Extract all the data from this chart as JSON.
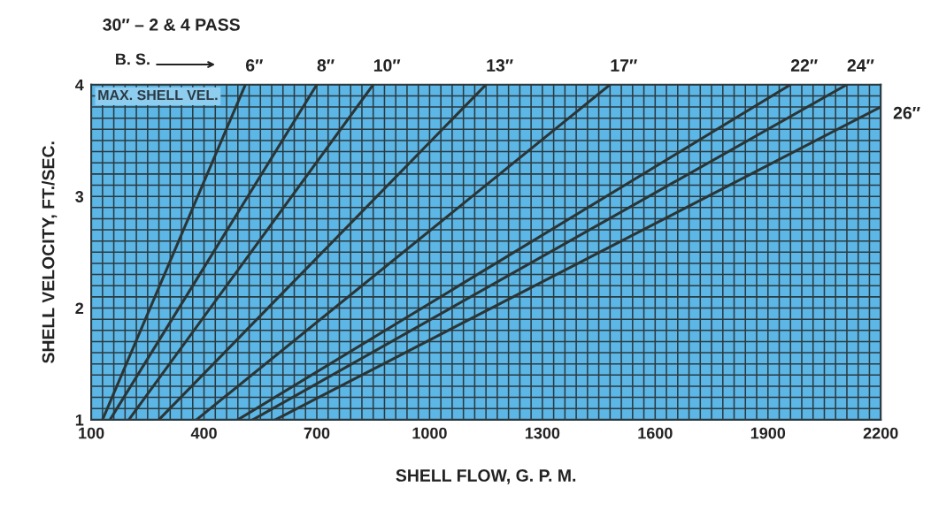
{
  "chart_data": {
    "type": "line",
    "title": "30″ – 2 & 4 PASS",
    "xlabel": "SHELL FLOW, G. P. M.",
    "ylabel": "SHELL VELOCITY, FT./SEC.",
    "annotations": [
      "B. S.",
      "MAX. SHELL VEL."
    ],
    "xlim": [
      100,
      2200
    ],
    "ylim": [
      1,
      4
    ],
    "xticks": [
      100,
      {
        "value": 130,
        "label": null
      },
      {
        "value": 160,
        "label": null
      },
      {
        "value": 190,
        "label": null
      },
      {
        "value": 220,
        "label": null
      },
      {
        "value": 250,
        "label": null
      },
      {
        "value": 280,
        "label": null
      },
      {
        "value": 310,
        "label": null
      },
      {
        "value": 340,
        "label": null
      },
      {
        "value": 370,
        "label": null
      },
      400,
      {
        "value": 430,
        "label": null
      },
      {
        "value": 460,
        "label": null
      },
      {
        "value": 490,
        "label": null
      },
      {
        "value": 520,
        "label": null
      },
      {
        "value": 550,
        "label": null
      },
      {
        "value": 580,
        "label": null
      },
      {
        "value": 610,
        "label": null
      },
      {
        "value": 640,
        "label": null
      },
      {
        "value": 670,
        "label": null
      },
      700,
      {
        "value": 730,
        "label": null
      },
      {
        "value": 760,
        "label": null
      },
      {
        "value": 790,
        "label": null
      },
      {
        "value": 820,
        "label": null
      },
      {
        "value": 850,
        "label": null
      },
      {
        "value": 880,
        "label": null
      },
      {
        "value": 910,
        "label": null
      },
      {
        "value": 940,
        "label": null
      },
      {
        "value": 970,
        "label": null
      },
      1000,
      {
        "value": 1030,
        "label": null
      },
      {
        "value": 1060,
        "label": null
      },
      {
        "value": 1090,
        "label": null
      },
      {
        "value": 1120,
        "label": null
      },
      {
        "value": 1150,
        "label": null
      },
      {
        "value": 1180,
        "label": null
      },
      {
        "value": 1210,
        "label": null
      },
      {
        "value": 1240,
        "label": null
      },
      {
        "value": 1270,
        "label": null
      },
      1300,
      {
        "value": 1330,
        "label": null
      },
      {
        "value": 1360,
        "label": null
      },
      {
        "value": 1390,
        "label": null
      },
      {
        "value": 1420,
        "label": null
      },
      {
        "value": 1450,
        "label": null
      },
      {
        "value": 1480,
        "label": null
      },
      {
        "value": 1510,
        "label": null
      },
      {
        "value": 1540,
        "label": null
      },
      {
        "value": 1570,
        "label": null
      },
      1600,
      {
        "value": 1630,
        "label": null
      },
      {
        "value": 1660,
        "label": null
      },
      {
        "value": 1690,
        "label": null
      },
      {
        "value": 1720,
        "label": null
      },
      {
        "value": 1750,
        "label": null
      },
      {
        "value": 1780,
        "label": null
      },
      {
        "value": 1810,
        "label": null
      },
      {
        "value": 1840,
        "label": null
      },
      {
        "value": 1870,
        "label": null
      },
      1900,
      {
        "value": 1930,
        "label": null
      },
      {
        "value": 1960,
        "label": null
      },
      {
        "value": 1990,
        "label": null
      },
      {
        "value": 2020,
        "label": null
      },
      {
        "value": 2050,
        "label": null
      },
      {
        "value": 2080,
        "label": null
      },
      {
        "value": 2110,
        "label": null
      },
      {
        "value": 2140,
        "label": null
      },
      {
        "value": 2170,
        "label": null
      },
      2200
    ],
    "yticks": [
      1,
      {
        "value": 1.1,
        "label": null
      },
      {
        "value": 1.2,
        "label": null
      },
      {
        "value": 1.3,
        "label": null
      },
      {
        "value": 1.4,
        "label": null
      },
      {
        "value": 1.5,
        "label": null
      },
      {
        "value": 1.6,
        "label": null
      },
      {
        "value": 1.7,
        "label": null
      },
      {
        "value": 1.8,
        "label": null
      },
      {
        "value": 1.9,
        "label": null
      },
      2,
      {
        "value": 2.1,
        "label": null
      },
      {
        "value": 2.2,
        "label": null
      },
      {
        "value": 2.3,
        "label": null
      },
      {
        "value": 2.4,
        "label": null
      },
      {
        "value": 2.5,
        "label": null
      },
      {
        "value": 2.6,
        "label": null
      },
      {
        "value": 2.7,
        "label": null
      },
      {
        "value": 2.8,
        "label": null
      },
      {
        "value": 2.9,
        "label": null
      },
      3,
      {
        "value": 3.1,
        "label": null
      },
      {
        "value": 3.2,
        "label": null
      },
      {
        "value": 3.3,
        "label": null
      },
      {
        "value": 3.4,
        "label": null
      },
      {
        "value": 3.5,
        "label": null
      },
      {
        "value": 3.6,
        "label": null
      },
      {
        "value": 3.7,
        "label": null
      },
      {
        "value": 3.8,
        "label": null
      },
      {
        "value": 3.9,
        "label": null
      },
      4
    ],
    "grid": true,
    "legend": false,
    "line_style": "solid",
    "series": [
      {
        "name": "6″",
        "color": "#2b3535",
        "x": [
          130,
          510
        ],
        "values": [
          1,
          4
        ]
      },
      {
        "name": "8″",
        "color": "#2b3535",
        "x": [
          150,
          700
        ],
        "values": [
          1,
          4
        ]
      },
      {
        "name": "10″",
        "color": "#2b3535",
        "x": [
          200,
          850
        ],
        "values": [
          1,
          4
        ]
      },
      {
        "name": "13″",
        "color": "#2b3535",
        "x": [
          280,
          1150
        ],
        "values": [
          1,
          4
        ]
      },
      {
        "name": "17″",
        "color": "#2b3535",
        "x": [
          380,
          1480
        ],
        "values": [
          1,
          4
        ]
      },
      {
        "name": "22″",
        "color": "#2b3535",
        "x": [
          490,
          1960
        ],
        "values": [
          1,
          4
        ]
      },
      {
        "name": "24″",
        "color": "#2b3535",
        "x": [
          530,
          2110
        ],
        "values": [
          1,
          4
        ]
      },
      {
        "name": "26″",
        "color": "#2b3535",
        "x": [
          590,
          2200
        ],
        "values": [
          1,
          3.8
        ]
      }
    ]
  }
}
